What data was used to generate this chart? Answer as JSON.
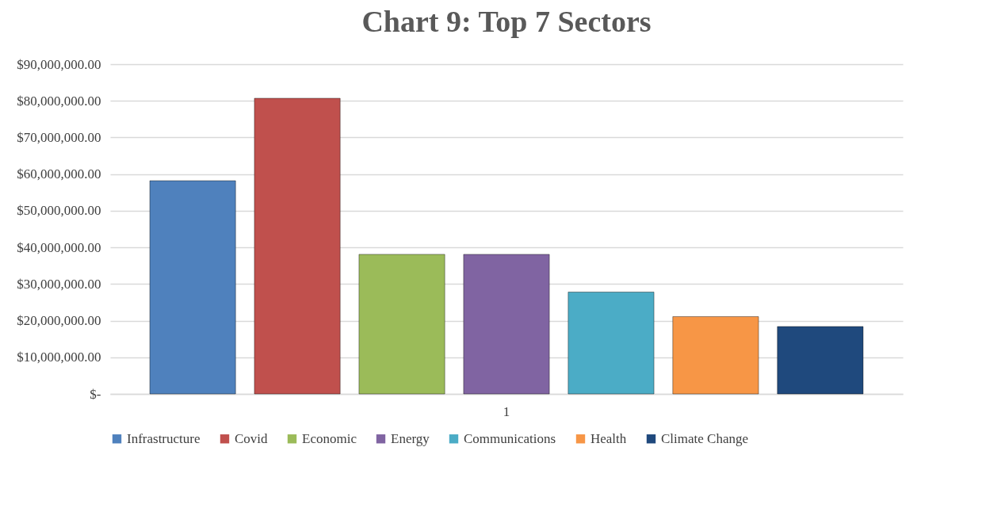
{
  "chart_data": {
    "type": "bar",
    "title": "Chart 9: Top 7 Sectors",
    "categories": [
      "1"
    ],
    "series": [
      {
        "name": "Infrastructure",
        "color": "#4f81bd",
        "values": [
          58200000
        ]
      },
      {
        "name": "Covid",
        "color": "#c0504d",
        "values": [
          80700000
        ]
      },
      {
        "name": "Economic",
        "color": "#9bbb59",
        "values": [
          38100000
        ]
      },
      {
        "name": "Energy",
        "color": "#8064a2",
        "values": [
          38100000
        ]
      },
      {
        "name": "Communications",
        "color": "#4bacc6",
        "values": [
          27800000
        ]
      },
      {
        "name": "Health",
        "color": "#f79646",
        "values": [
          21100000
        ]
      },
      {
        "name": "Climate Change",
        "color": "#1f497d",
        "values": [
          18400000
        ]
      }
    ],
    "ylim": [
      0,
      90000000
    ],
    "yticks": [
      {
        "value": 0,
        "label": "$-"
      },
      {
        "value": 10000000,
        "label": "$10,000,000.00"
      },
      {
        "value": 20000000,
        "label": "$20,000,000.00"
      },
      {
        "value": 30000000,
        "label": "$30,000,000.00"
      },
      {
        "value": 40000000,
        "label": "$40,000,000.00"
      },
      {
        "value": 50000000,
        "label": "$50,000,000.00"
      },
      {
        "value": 60000000,
        "label": "$60,000,000.00"
      },
      {
        "value": 70000000,
        "label": "$70,000,000.00"
      },
      {
        "value": 80000000,
        "label": "$80,000,000.00"
      },
      {
        "value": 90000000,
        "label": "$90,000,000.00"
      }
    ],
    "grid": "y",
    "legend": "bottom"
  }
}
